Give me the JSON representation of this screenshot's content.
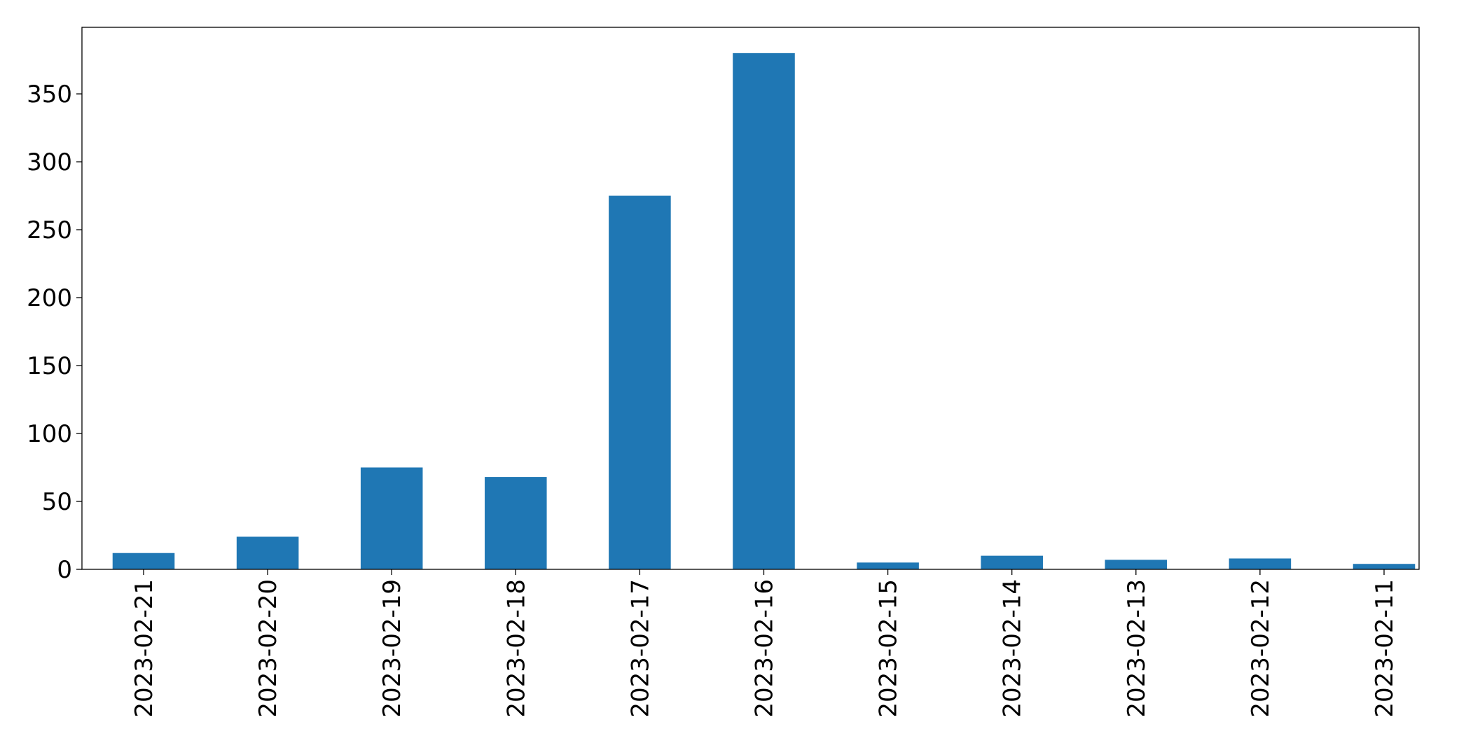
{
  "chart_data": {
    "type": "bar",
    "title": "",
    "xlabel": "",
    "ylabel": "",
    "categories": [
      "2023-02-21",
      "2023-02-20",
      "2023-02-19",
      "2023-02-18",
      "2023-02-17",
      "2023-02-16",
      "2023-02-15",
      "2023-02-14",
      "2023-02-13",
      "2023-02-12",
      "2023-02-11"
    ],
    "values": [
      12,
      24,
      75,
      68,
      275,
      380,
      5,
      10,
      7,
      8,
      4
    ],
    "ylim": [
      0,
      399
    ],
    "yticks": [
      0,
      50,
      100,
      150,
      200,
      250,
      300,
      350
    ],
    "ytick_labels": [
      "0",
      "50",
      "100",
      "150",
      "200",
      "250",
      "300",
      "350"
    ],
    "xtick_rotation": "vertical",
    "grid": false,
    "legend": "none",
    "bar_color": "#1f77b4"
  }
}
